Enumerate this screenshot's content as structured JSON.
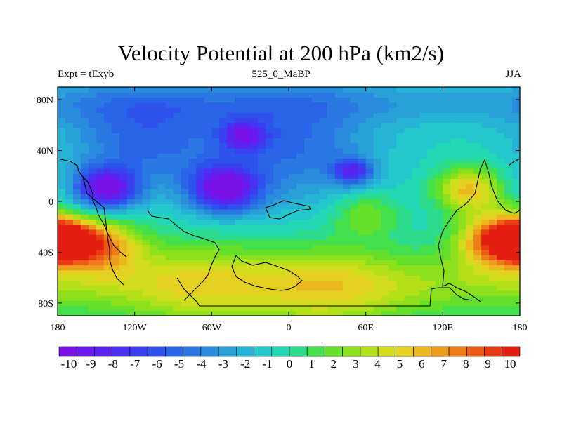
{
  "chart_data": {
    "type": "heatmap",
    "title": "Velocity Potential at 200 hPa (km2/s)",
    "subtitle_left": "Expt = tExyb",
    "subtitle_center": "525_0_MaBP",
    "subtitle_right": "JJA",
    "x_ticks": [
      "180",
      "120W",
      "60W",
      "0",
      "60E",
      "120E",
      "180"
    ],
    "x_tick_values": [
      -180,
      -120,
      -60,
      0,
      60,
      120,
      180
    ],
    "y_ticks": [
      "80N",
      "40N",
      "0",
      "40S",
      "80S"
    ],
    "y_tick_values": [
      80,
      40,
      0,
      -40,
      -80
    ],
    "xlim": [
      -180,
      180
    ],
    "ylim": [
      -90,
      90
    ],
    "colorbar": {
      "labels": [
        "-10",
        "-9",
        "-8",
        "-7",
        "-6",
        "-5",
        "-4",
        "-3",
        "-2",
        "-1",
        "0",
        "1",
        "2",
        "3",
        "4",
        "5",
        "6",
        "7",
        "8",
        "9",
        "10"
      ],
      "values": [
        -10,
        -9,
        -8,
        -7,
        -6,
        -5,
        -4,
        -3,
        -2,
        -1,
        0,
        1,
        2,
        3,
        4,
        5,
        6,
        7,
        8,
        9,
        10
      ],
      "colors": [
        "#7a12e8",
        "#6a1aee",
        "#5a24f0",
        "#4a30f2",
        "#3a3ff0",
        "#2e52ec",
        "#2a64e8",
        "#2a78e2",
        "#2a8cdc",
        "#2aa0d8",
        "#26b4d6",
        "#24c8cc",
        "#22d8b4",
        "#2cdc8c",
        "#44e04c",
        "#64e02a",
        "#8ce01c",
        "#b4e01a",
        "#d0dc1c",
        "#e4d020",
        "#ecb820",
        "#ee9c1c",
        "#ee7c18",
        "#ec5c16",
        "#e83c12",
        "#e41e10"
      ]
    },
    "field_features": [
      {
        "lon": -142,
        "lat": 10,
        "value": -8.7,
        "spread": 17
      },
      {
        "lon": -50,
        "lat": 10,
        "value": -8.9,
        "spread": 19
      },
      {
        "lon": 50,
        "lat": 24,
        "value": -6.0,
        "spread": 11
      },
      {
        "lon": -35,
        "lat": 52,
        "value": -5.6,
        "spread": 12
      },
      {
        "lon": -115,
        "lat": 50,
        "value": -4.3,
        "spread": 42
      },
      {
        "lon": 0,
        "lat": 45,
        "value": -4.2,
        "spread": 48
      },
      {
        "lon": 165,
        "lat": -30,
        "value": 9.5,
        "spread": 22
      },
      {
        "lon": 140,
        "lat": 10,
        "value": 6.2,
        "spread": 18
      },
      {
        "lon": -175,
        "lat": -30,
        "value": 9.0,
        "spread": 16
      },
      {
        "lon": -145,
        "lat": -35,
        "value": 6.5,
        "spread": 22
      },
      {
        "lon": 60,
        "lat": -10,
        "value": 3.0,
        "spread": 18
      },
      {
        "lon": 30,
        "lat": -70,
        "value": 2.8,
        "spread": 40
      },
      {
        "lon": -70,
        "lat": -65,
        "value": 2.5,
        "spread": 40
      }
    ]
  }
}
